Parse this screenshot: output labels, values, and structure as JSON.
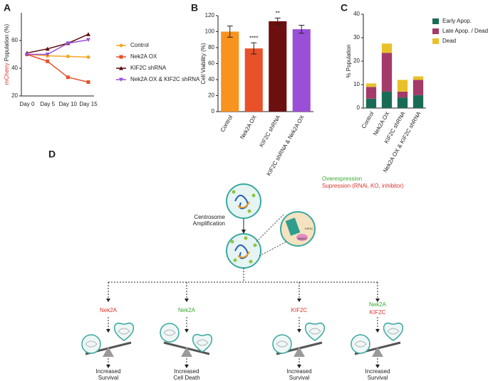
{
  "chart_data": [
    {
      "type": "line",
      "panel": "A",
      "ylabel_marker": "mCherry",
      "ylabel": "Population (%)",
      "categories": [
        "Day 0",
        "Day 5",
        "Day 10",
        "Day 15"
      ],
      "series": [
        {
          "name": "Control",
          "color": "#f5a623",
          "values": [
            50,
            49,
            48.5,
            48
          ]
        },
        {
          "name": "Nek2A OX",
          "color": "#e8512a",
          "values": [
            50,
            45,
            33.5,
            30
          ]
        },
        {
          "name": "KIF2C shRNA",
          "color": "#5c0a0a",
          "values": [
            51,
            54,
            58,
            64.5
          ]
        },
        {
          "name": "Nek2A OX & KIF2C shRNA",
          "color": "#9b4fd6",
          "values": [
            50,
            50,
            58,
            60.5
          ]
        }
      ],
      "ylim": [
        20,
        80
      ],
      "yticks": [
        20,
        40,
        60
      ]
    },
    {
      "type": "bar",
      "panel": "B",
      "ylabel": "Cell Viability (%)",
      "categories": [
        "Control",
        "Nek2A OX",
        "KIF2C shRNA",
        "KIF2C shRNA & Nek2A OX"
      ],
      "values": [
        100,
        79,
        113,
        103
      ],
      "errors": [
        7,
        7,
        4,
        5
      ],
      "colors": [
        "#f7931e",
        "#e8512a",
        "#6b0f0f",
        "#9b4fd6"
      ],
      "annotations": [
        {
          "category": "Nek2A OX",
          "text": "****"
        },
        {
          "category": "KIF2C shRNA",
          "text": "**"
        }
      ],
      "ylim": [
        0,
        120
      ],
      "yticks": [
        0,
        20,
        40,
        60,
        80,
        100,
        120
      ]
    },
    {
      "type": "stacked_bar",
      "panel": "C",
      "ylabel": "% Population",
      "categories": [
        "Control",
        "Nek2A OX",
        "KIF2C shRNA",
        "Nek2A OX & KIF2C shRNA"
      ],
      "series": [
        {
          "name": "Early Apop.",
          "color": "#1a6b56",
          "values": [
            4,
            7,
            4.5,
            5.5
          ]
        },
        {
          "name": "Late Apop. / Dead",
          "color": "#a33a6a",
          "values": [
            5,
            16.5,
            2.5,
            6.5
          ]
        },
        {
          "name": "Dead",
          "color": "#e8c12a",
          "values": [
            1.5,
            4,
            5,
            1.5
          ]
        }
      ],
      "ylim": [
        0,
        40
      ],
      "yticks": [
        0,
        10,
        20,
        30,
        40
      ]
    }
  ],
  "diagram": {
    "panel": "D",
    "legend": {
      "overexpression": "Overexpression",
      "suppression": "Supression (RNAi, KO, inhibitor)"
    },
    "step": [
      "Centrosome",
      "Amplification"
    ],
    "inset": [
      "KIF2C",
      "Nek2A"
    ],
    "branches": [
      {
        "labels": [
          "Nek2A"
        ],
        "outcome": [
          "Increased",
          "Survival"
        ]
      },
      {
        "labels": [
          "Nek2A"
        ],
        "outcome": [
          "Increased",
          "Cell Death"
        ]
      },
      {
        "labels": [
          "KIF2C"
        ],
        "outcome": [
          "Increased",
          "Survival"
        ]
      },
      {
        "labels": [
          "Nek2A",
          "KIF2C"
        ],
        "outcome": [
          "Increased",
          "Survival"
        ]
      }
    ]
  }
}
